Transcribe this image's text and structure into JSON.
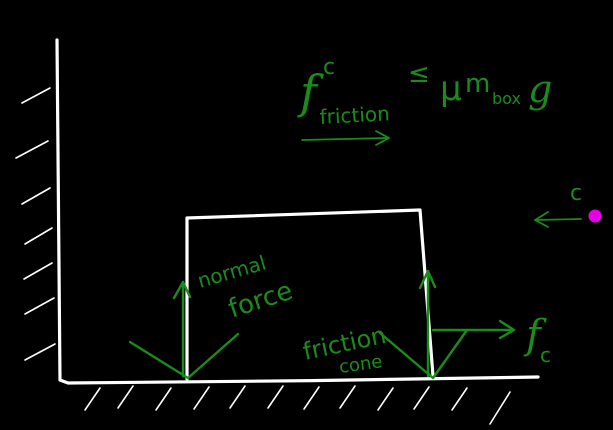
{
  "colors": {
    "background": "#000000",
    "chalk": "#ffffff",
    "ink": "#1a8c1a",
    "point": "#e600e6"
  },
  "equation": {
    "f_symbol": "f",
    "superscript_c": "c",
    "subscript_friction": "friction",
    "leq": "≤",
    "mu": "μ",
    "m": "m",
    "m_subscript": "box",
    "g": "g"
  },
  "labels": {
    "normal_force_line1": "normal",
    "normal_force_line2": "force",
    "friction_cone_line1": "friction",
    "friction_cone_line2": "cone",
    "fc_f": "f",
    "fc_sub": "c",
    "contact_point_label": "c"
  }
}
